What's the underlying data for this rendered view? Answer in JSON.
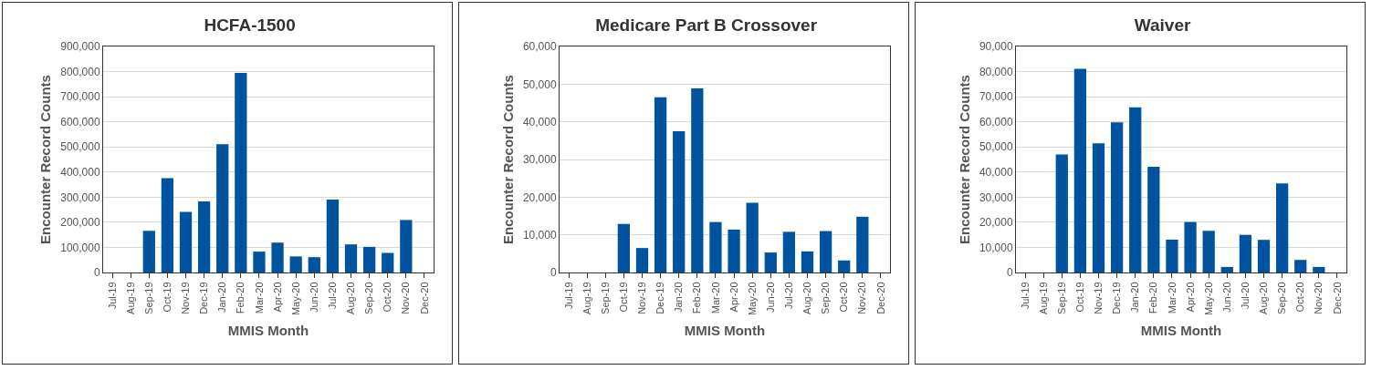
{
  "chart_data": [
    {
      "type": "bar",
      "title": "HCFA-1500",
      "xlabel": "MMIS Month",
      "ylabel": "Encounter Record Counts",
      "categories": [
        "Jul-19",
        "Aug-19",
        "Sep-19",
        "Oct-19",
        "Nov-19",
        "Dec-19",
        "Jan-20",
        "Feb-20",
        "Mar-20",
        "Apr-20",
        "May-20",
        "Jun-20",
        "Jul-20",
        "Aug-20",
        "Sep-20",
        "Oct-20",
        "Nov-20",
        "Dec-20"
      ],
      "series": [
        {
          "color": "#00539f",
          "values": [
            0,
            0,
            166000,
            376000,
            241000,
            283000,
            511000,
            795000,
            83000,
            119000,
            64000,
            61000,
            290000,
            112000,
            102000,
            78000,
            209000,
            0
          ]
        }
      ],
      "ylim": [
        0,
        900000
      ],
      "yticks": [
        {
          "value": 0,
          "label": "0"
        },
        {
          "value": 100000,
          "label": "100,000"
        },
        {
          "value": 200000,
          "label": "200,000"
        },
        {
          "value": 300000,
          "label": "300,000"
        },
        {
          "value": 400000,
          "label": "400,000"
        },
        {
          "value": 500000,
          "label": "500,000"
        },
        {
          "value": 600000,
          "label": "600,000"
        },
        {
          "value": 700000,
          "label": "700,000"
        },
        {
          "value": 800000,
          "label": "800,000"
        },
        {
          "value": 900000,
          "label": "900,000"
        }
      ],
      "grid": "y",
      "legend": false
    },
    {
      "type": "bar",
      "title": "Medicare Part B Crossover",
      "xlabel": "MMIS Month",
      "ylabel": "Encounter Record Counts",
      "categories": [
        "Jul-19",
        "Aug-19",
        "Sep-19",
        "Oct-19",
        "Nov-19",
        "Dec-19",
        "Jan-20",
        "Feb-20",
        "Mar-20",
        "Apr-20",
        "May-20",
        "Jun-20",
        "Jul-20",
        "Aug-20",
        "Sep-20",
        "Oct-20",
        "Nov-20",
        "Dec-20"
      ],
      "series": [
        {
          "color": "#00539f",
          "values": [
            0,
            0,
            0,
            12900,
            6500,
            46500,
            37500,
            48900,
            13400,
            11400,
            18500,
            5300,
            10800,
            5600,
            11000,
            3200,
            14800,
            0
          ]
        }
      ],
      "ylim": [
        0,
        60000
      ],
      "yticks": [
        {
          "value": 0,
          "label": "0"
        },
        {
          "value": 10000,
          "label": "10,000"
        },
        {
          "value": 20000,
          "label": "20,000"
        },
        {
          "value": 30000,
          "label": "30,000"
        },
        {
          "value": 40000,
          "label": "40,000"
        },
        {
          "value": 50000,
          "label": "50,000"
        },
        {
          "value": 60000,
          "label": "60,000"
        }
      ],
      "grid": "y",
      "legend": false
    },
    {
      "type": "bar",
      "title": "Waiver",
      "xlabel": "MMIS Month",
      "ylabel": "Encounter Record Counts",
      "categories": [
        "Jul-19",
        "Aug-19",
        "Sep-19",
        "Oct-19",
        "Nov-19",
        "Dec-19",
        "Jan-20",
        "Feb-20",
        "Mar-20",
        "Apr-20",
        "May-20",
        "Jun-20",
        "Jul-20",
        "Aug-20",
        "Sep-20",
        "Oct-20",
        "Nov-20",
        "Dec-20"
      ],
      "series": [
        {
          "color": "#00539f",
          "values": [
            0,
            0,
            47000,
            81100,
            51400,
            59800,
            65800,
            42100,
            13100,
            20100,
            16600,
            2200,
            15000,
            13000,
            35500,
            5000,
            2200,
            0
          ]
        }
      ],
      "ylim": [
        0,
        90000
      ],
      "yticks": [
        {
          "value": 0,
          "label": "0"
        },
        {
          "value": 10000,
          "label": "10,000"
        },
        {
          "value": 20000,
          "label": "20,000"
        },
        {
          "value": 30000,
          "label": "30,000"
        },
        {
          "value": 40000,
          "label": "40,000"
        },
        {
          "value": 50000,
          "label": "50,000"
        },
        {
          "value": 60000,
          "label": "60,000"
        },
        {
          "value": 70000,
          "label": "70,000"
        },
        {
          "value": 80000,
          "label": "80,000"
        },
        {
          "value": 90000,
          "label": "90,000"
        }
      ],
      "grid": "y",
      "legend": false
    }
  ]
}
